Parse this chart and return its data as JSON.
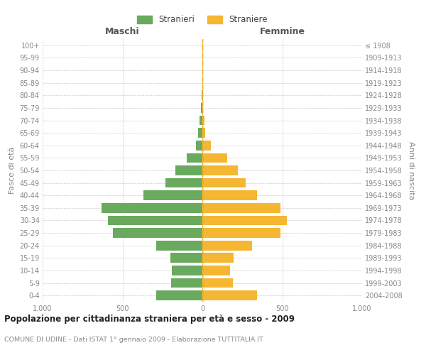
{
  "age_groups": [
    "0-4",
    "5-9",
    "10-14",
    "15-19",
    "20-24",
    "25-29",
    "30-34",
    "35-39",
    "40-44",
    "45-49",
    "50-54",
    "55-59",
    "60-64",
    "65-69",
    "70-74",
    "75-79",
    "80-84",
    "85-89",
    "90-94",
    "95-99",
    "100+"
  ],
  "birth_years": [
    "2004-2008",
    "1999-2003",
    "1994-1998",
    "1989-1993",
    "1984-1988",
    "1979-1983",
    "1974-1978",
    "1969-1973",
    "1964-1968",
    "1959-1963",
    "1954-1958",
    "1949-1953",
    "1944-1948",
    "1939-1943",
    "1934-1938",
    "1929-1933",
    "1924-1928",
    "1919-1923",
    "1914-1918",
    "1909-1913",
    "≤ 1908"
  ],
  "males": [
    290,
    195,
    190,
    200,
    290,
    560,
    590,
    630,
    370,
    230,
    170,
    100,
    40,
    25,
    20,
    8,
    3,
    2,
    0,
    0,
    0
  ],
  "females": [
    340,
    190,
    175,
    195,
    310,
    490,
    530,
    490,
    340,
    270,
    220,
    155,
    55,
    18,
    12,
    5,
    5,
    5,
    0,
    0,
    0
  ],
  "male_color": "#6aaa5e",
  "female_color": "#f5b731",
  "background_color": "#ffffff",
  "grid_color": "#cccccc",
  "title": "Popolazione per cittadinanza straniera per età e sesso - 2009",
  "subtitle": "COMUNE DI UDINE - Dati ISTAT 1° gennaio 2009 - Elaborazione TUTTITALIA.IT",
  "legend_male": "Stranieri",
  "legend_female": "Straniere",
  "label_left": "Maschi",
  "label_right": "Femmine",
  "ylabel_left": "Fasce di età",
  "ylabel_right": "Anni di nascita",
  "xlim": 1000
}
